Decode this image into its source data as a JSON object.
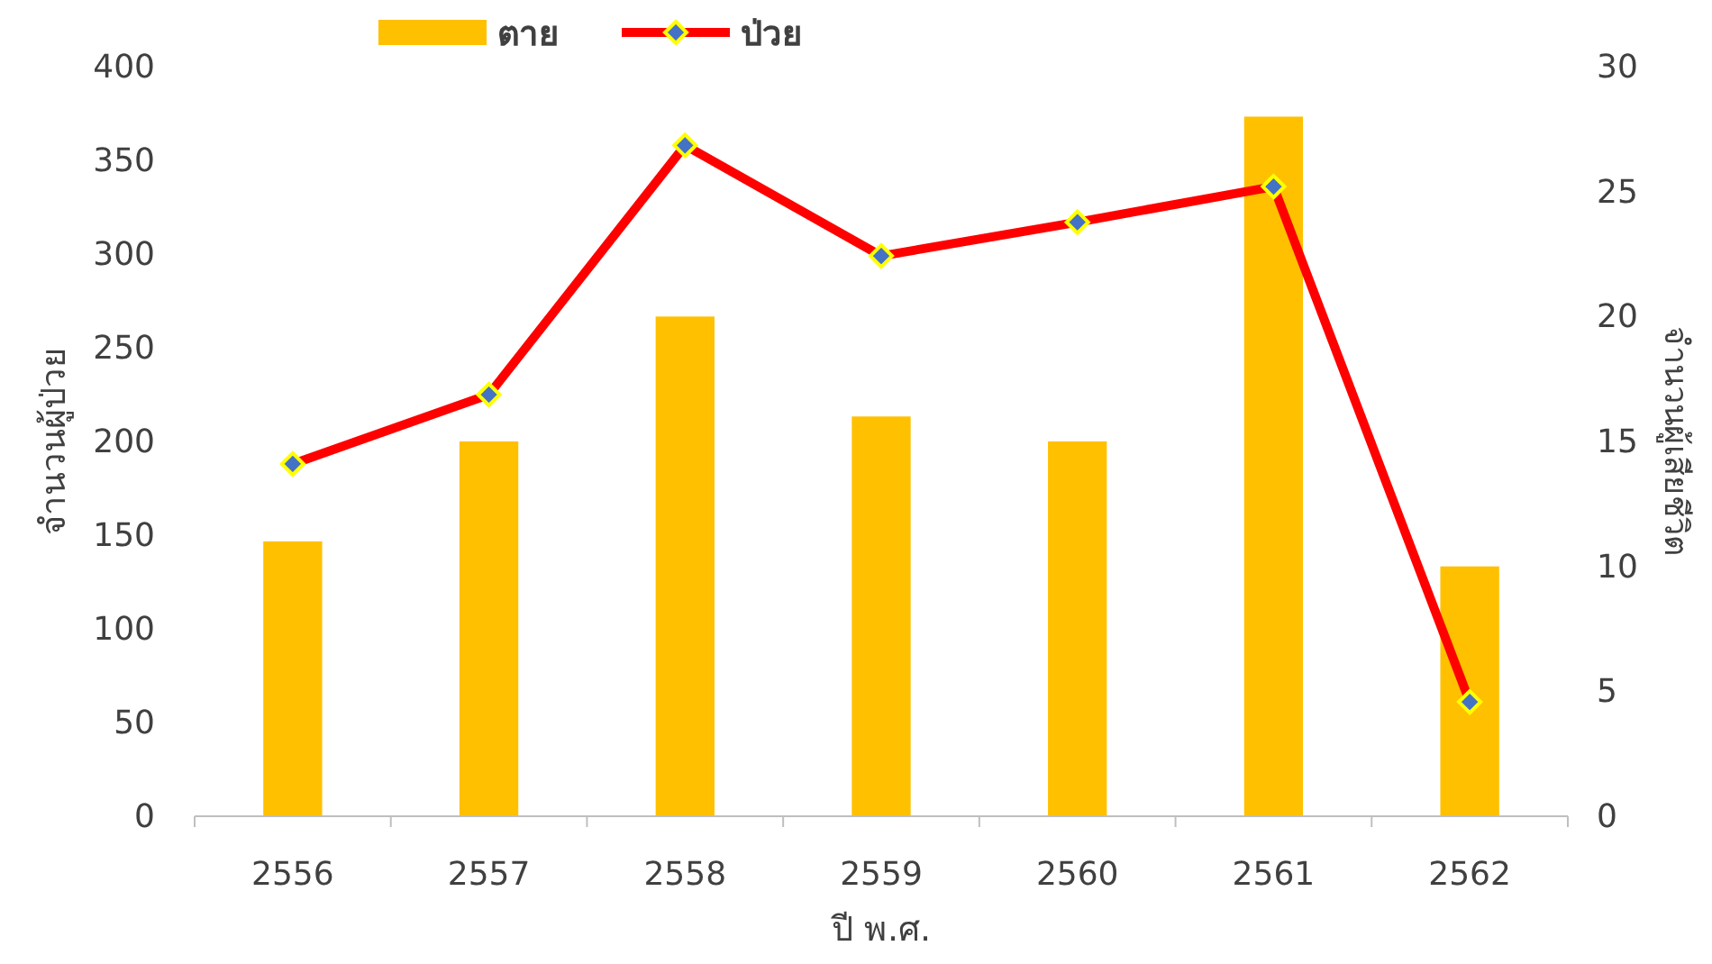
{
  "chart_data": {
    "type": "bar",
    "xlabel": "ปี พ.ศ.",
    "ylabel": "จำนวนผู้ป่วย",
    "y2label": "จำนวนผู้เสียชีวิต",
    "categories": [
      "2556",
      "2557",
      "2558",
      "2559",
      "2560",
      "2561",
      "2562"
    ],
    "series": [
      {
        "name": "ตาย",
        "axis": "y2",
        "color": "#ffc000",
        "values": [
          11,
          15,
          20,
          16,
          15,
          28,
          10
        ]
      },
      {
        "name": "ป่วย",
        "type": "line",
        "color": "#ff0000",
        "marker": "diamond",
        "values": [
          188,
          225,
          358,
          299,
          317,
          336,
          61
        ]
      }
    ],
    "ylim": [
      0,
      400
    ],
    "yticks": [
      0,
      50,
      100,
      150,
      200,
      250,
      300,
      350,
      400
    ],
    "y2lim": [
      0,
      30
    ],
    "y2ticks": [
      0,
      5,
      10,
      15,
      20,
      25,
      30
    ],
    "grid": false,
    "legend": "top"
  }
}
